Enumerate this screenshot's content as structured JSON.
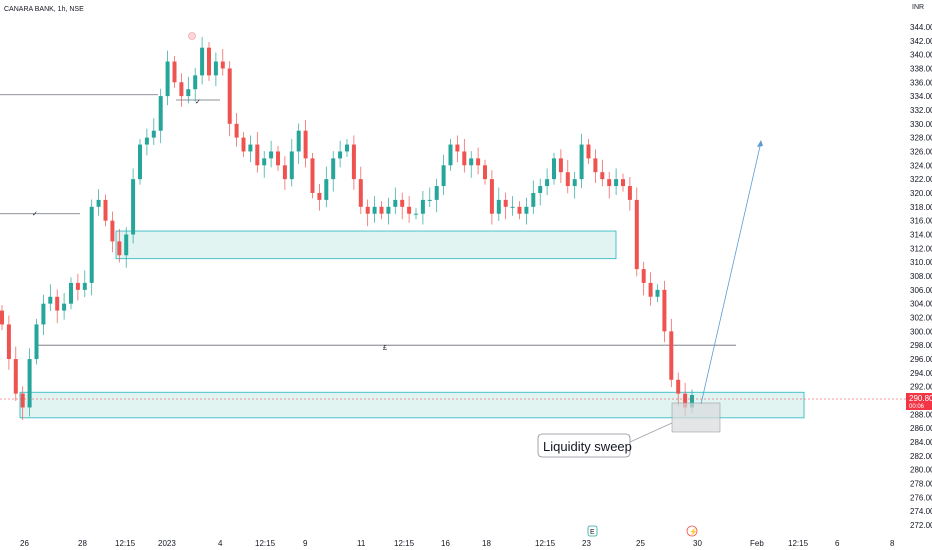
{
  "header": {
    "title": "CANARA BANK, 1h, NSE"
  },
  "price_scale": {
    "currency": "INR",
    "ticks": [
      "344.00",
      "342.00",
      "340.00",
      "338.00",
      "336.00",
      "334.00",
      "332.00",
      "330.00",
      "328.00",
      "326.00",
      "324.00",
      "322.00",
      "320.00",
      "318.00",
      "316.00",
      "314.00",
      "312.00",
      "310.00",
      "308.00",
      "306.00",
      "304.00",
      "302.00",
      "300.00",
      "298.00",
      "296.00",
      "294.00",
      "292.00",
      "290.00",
      "288.00",
      "286.00",
      "284.00",
      "282.00",
      "280.00",
      "278.00",
      "276.00",
      "274.00",
      "272.00"
    ],
    "last_price": "290.80",
    "countdown": "00:06"
  },
  "time_scale": {
    "ticks": [
      "26",
      "28",
      "12:15",
      "2023",
      "4",
      "12:15",
      "9",
      "11",
      "12:15",
      "16",
      "18",
      "12:15",
      "23",
      "25",
      "30",
      "Feb",
      "12:15",
      "6",
      "8"
    ]
  },
  "annotations": {
    "callout": "Liquidity sweep",
    "checkmark": "✓",
    "pound": "£",
    "earnings_badge": "E",
    "dividend_badge": "⚡"
  },
  "colors": {
    "up": "#26a69a",
    "down": "#ef5350",
    "zone_fill": "#d9f1ee",
    "zone_stroke": "#22b5bf",
    "arrow": "#5b9bd5",
    "last_price_bg": "#f23645"
  },
  "chart_data": {
    "type": "candlestick",
    "ylim": [
      271,
      345
    ],
    "ohlc_close": [
      301,
      296,
      291,
      289,
      296,
      301,
      304,
      305,
      303,
      304,
      307,
      306,
      307,
      318,
      319,
      316,
      313,
      311,
      314,
      322,
      327,
      328,
      329,
      334,
      339,
      336,
      334,
      335,
      337,
      341,
      337,
      339,
      338,
      330,
      328,
      326,
      327,
      324,
      325,
      326,
      324,
      322,
      326,
      329,
      325,
      320,
      319,
      322,
      325,
      326,
      327,
      322,
      318,
      317,
      318,
      317,
      318,
      319,
      318,
      317,
      317,
      319,
      319,
      321,
      324,
      327,
      326,
      324,
      325,
      324,
      322,
      317,
      319,
      318,
      318,
      317,
      318,
      320,
      321,
      322,
      325,
      323,
      321,
      322,
      327,
      325,
      323,
      322,
      321,
      322,
      321,
      319,
      309,
      307,
      305,
      306,
      300,
      293,
      291,
      289,
      290.8
    ],
    "zones": [
      {
        "name": "demand-zone-upper",
        "from": 310.5,
        "to": 314.5
      },
      {
        "name": "demand-zone-lower",
        "from": 287.5,
        "to": 291.2
      }
    ],
    "levels": [
      {
        "name": "resistance-line-left",
        "value": 334.2
      },
      {
        "name": "level-line-mid-left",
        "value": 317
      },
      {
        "name": "horizontal-line-298",
        "value": 298
      }
    ],
    "last_price": 290.8
  }
}
